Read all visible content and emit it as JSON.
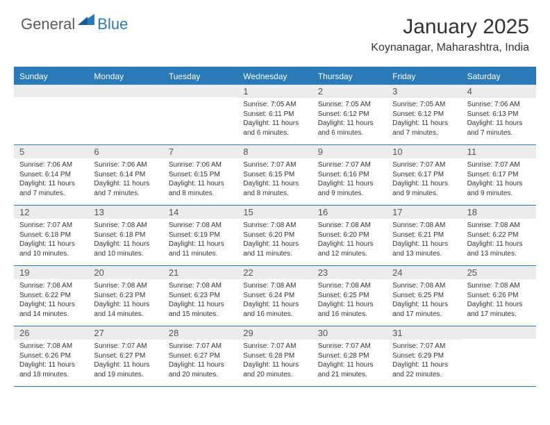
{
  "brand": {
    "part1": "General",
    "part2": "Blue"
  },
  "title": "January 2025",
  "location": "Koynanagar, Maharashtra, India",
  "colors": {
    "header_bg": "#2a7ab8",
    "daynum_bg": "#ececec",
    "border": "#2a7ab8",
    "text": "#333333",
    "logo_gray": "#58595b"
  },
  "day_names": [
    "Sunday",
    "Monday",
    "Tuesday",
    "Wednesday",
    "Thursday",
    "Friday",
    "Saturday"
  ],
  "weeks": [
    [
      {
        "n": "",
        "sr": "",
        "ss": "",
        "dl": ""
      },
      {
        "n": "",
        "sr": "",
        "ss": "",
        "dl": ""
      },
      {
        "n": "",
        "sr": "",
        "ss": "",
        "dl": ""
      },
      {
        "n": "1",
        "sr": "Sunrise: 7:05 AM",
        "ss": "Sunset: 6:11 PM",
        "dl": "Daylight: 11 hours and 6 minutes."
      },
      {
        "n": "2",
        "sr": "Sunrise: 7:05 AM",
        "ss": "Sunset: 6:12 PM",
        "dl": "Daylight: 11 hours and 6 minutes."
      },
      {
        "n": "3",
        "sr": "Sunrise: 7:05 AM",
        "ss": "Sunset: 6:12 PM",
        "dl": "Daylight: 11 hours and 7 minutes."
      },
      {
        "n": "4",
        "sr": "Sunrise: 7:06 AM",
        "ss": "Sunset: 6:13 PM",
        "dl": "Daylight: 11 hours and 7 minutes."
      }
    ],
    [
      {
        "n": "5",
        "sr": "Sunrise: 7:06 AM",
        "ss": "Sunset: 6:14 PM",
        "dl": "Daylight: 11 hours and 7 minutes."
      },
      {
        "n": "6",
        "sr": "Sunrise: 7:06 AM",
        "ss": "Sunset: 6:14 PM",
        "dl": "Daylight: 11 hours and 7 minutes."
      },
      {
        "n": "7",
        "sr": "Sunrise: 7:06 AM",
        "ss": "Sunset: 6:15 PM",
        "dl": "Daylight: 11 hours and 8 minutes."
      },
      {
        "n": "8",
        "sr": "Sunrise: 7:07 AM",
        "ss": "Sunset: 6:15 PM",
        "dl": "Daylight: 11 hours and 8 minutes."
      },
      {
        "n": "9",
        "sr": "Sunrise: 7:07 AM",
        "ss": "Sunset: 6:16 PM",
        "dl": "Daylight: 11 hours and 9 minutes."
      },
      {
        "n": "10",
        "sr": "Sunrise: 7:07 AM",
        "ss": "Sunset: 6:17 PM",
        "dl": "Daylight: 11 hours and 9 minutes."
      },
      {
        "n": "11",
        "sr": "Sunrise: 7:07 AM",
        "ss": "Sunset: 6:17 PM",
        "dl": "Daylight: 11 hours and 9 minutes."
      }
    ],
    [
      {
        "n": "12",
        "sr": "Sunrise: 7:07 AM",
        "ss": "Sunset: 6:18 PM",
        "dl": "Daylight: 11 hours and 10 minutes."
      },
      {
        "n": "13",
        "sr": "Sunrise: 7:08 AM",
        "ss": "Sunset: 6:18 PM",
        "dl": "Daylight: 11 hours and 10 minutes."
      },
      {
        "n": "14",
        "sr": "Sunrise: 7:08 AM",
        "ss": "Sunset: 6:19 PM",
        "dl": "Daylight: 11 hours and 11 minutes."
      },
      {
        "n": "15",
        "sr": "Sunrise: 7:08 AM",
        "ss": "Sunset: 6:20 PM",
        "dl": "Daylight: 11 hours and 11 minutes."
      },
      {
        "n": "16",
        "sr": "Sunrise: 7:08 AM",
        "ss": "Sunset: 6:20 PM",
        "dl": "Daylight: 11 hours and 12 minutes."
      },
      {
        "n": "17",
        "sr": "Sunrise: 7:08 AM",
        "ss": "Sunset: 6:21 PM",
        "dl": "Daylight: 11 hours and 13 minutes."
      },
      {
        "n": "18",
        "sr": "Sunrise: 7:08 AM",
        "ss": "Sunset: 6:22 PM",
        "dl": "Daylight: 11 hours and 13 minutes."
      }
    ],
    [
      {
        "n": "19",
        "sr": "Sunrise: 7:08 AM",
        "ss": "Sunset: 6:22 PM",
        "dl": "Daylight: 11 hours and 14 minutes."
      },
      {
        "n": "20",
        "sr": "Sunrise: 7:08 AM",
        "ss": "Sunset: 6:23 PM",
        "dl": "Daylight: 11 hours and 14 minutes."
      },
      {
        "n": "21",
        "sr": "Sunrise: 7:08 AM",
        "ss": "Sunset: 6:23 PM",
        "dl": "Daylight: 11 hours and 15 minutes."
      },
      {
        "n": "22",
        "sr": "Sunrise: 7:08 AM",
        "ss": "Sunset: 6:24 PM",
        "dl": "Daylight: 11 hours and 16 minutes."
      },
      {
        "n": "23",
        "sr": "Sunrise: 7:08 AM",
        "ss": "Sunset: 6:25 PM",
        "dl": "Daylight: 11 hours and 16 minutes."
      },
      {
        "n": "24",
        "sr": "Sunrise: 7:08 AM",
        "ss": "Sunset: 6:25 PM",
        "dl": "Daylight: 11 hours and 17 minutes."
      },
      {
        "n": "25",
        "sr": "Sunrise: 7:08 AM",
        "ss": "Sunset: 6:26 PM",
        "dl": "Daylight: 11 hours and 17 minutes."
      }
    ],
    [
      {
        "n": "26",
        "sr": "Sunrise: 7:08 AM",
        "ss": "Sunset: 6:26 PM",
        "dl": "Daylight: 11 hours and 18 minutes."
      },
      {
        "n": "27",
        "sr": "Sunrise: 7:07 AM",
        "ss": "Sunset: 6:27 PM",
        "dl": "Daylight: 11 hours and 19 minutes."
      },
      {
        "n": "28",
        "sr": "Sunrise: 7:07 AM",
        "ss": "Sunset: 6:27 PM",
        "dl": "Daylight: 11 hours and 20 minutes."
      },
      {
        "n": "29",
        "sr": "Sunrise: 7:07 AM",
        "ss": "Sunset: 6:28 PM",
        "dl": "Daylight: 11 hours and 20 minutes."
      },
      {
        "n": "30",
        "sr": "Sunrise: 7:07 AM",
        "ss": "Sunset: 6:28 PM",
        "dl": "Daylight: 11 hours and 21 minutes."
      },
      {
        "n": "31",
        "sr": "Sunrise: 7:07 AM",
        "ss": "Sunset: 6:29 PM",
        "dl": "Daylight: 11 hours and 22 minutes."
      },
      {
        "n": "",
        "sr": "",
        "ss": "",
        "dl": ""
      }
    ]
  ]
}
